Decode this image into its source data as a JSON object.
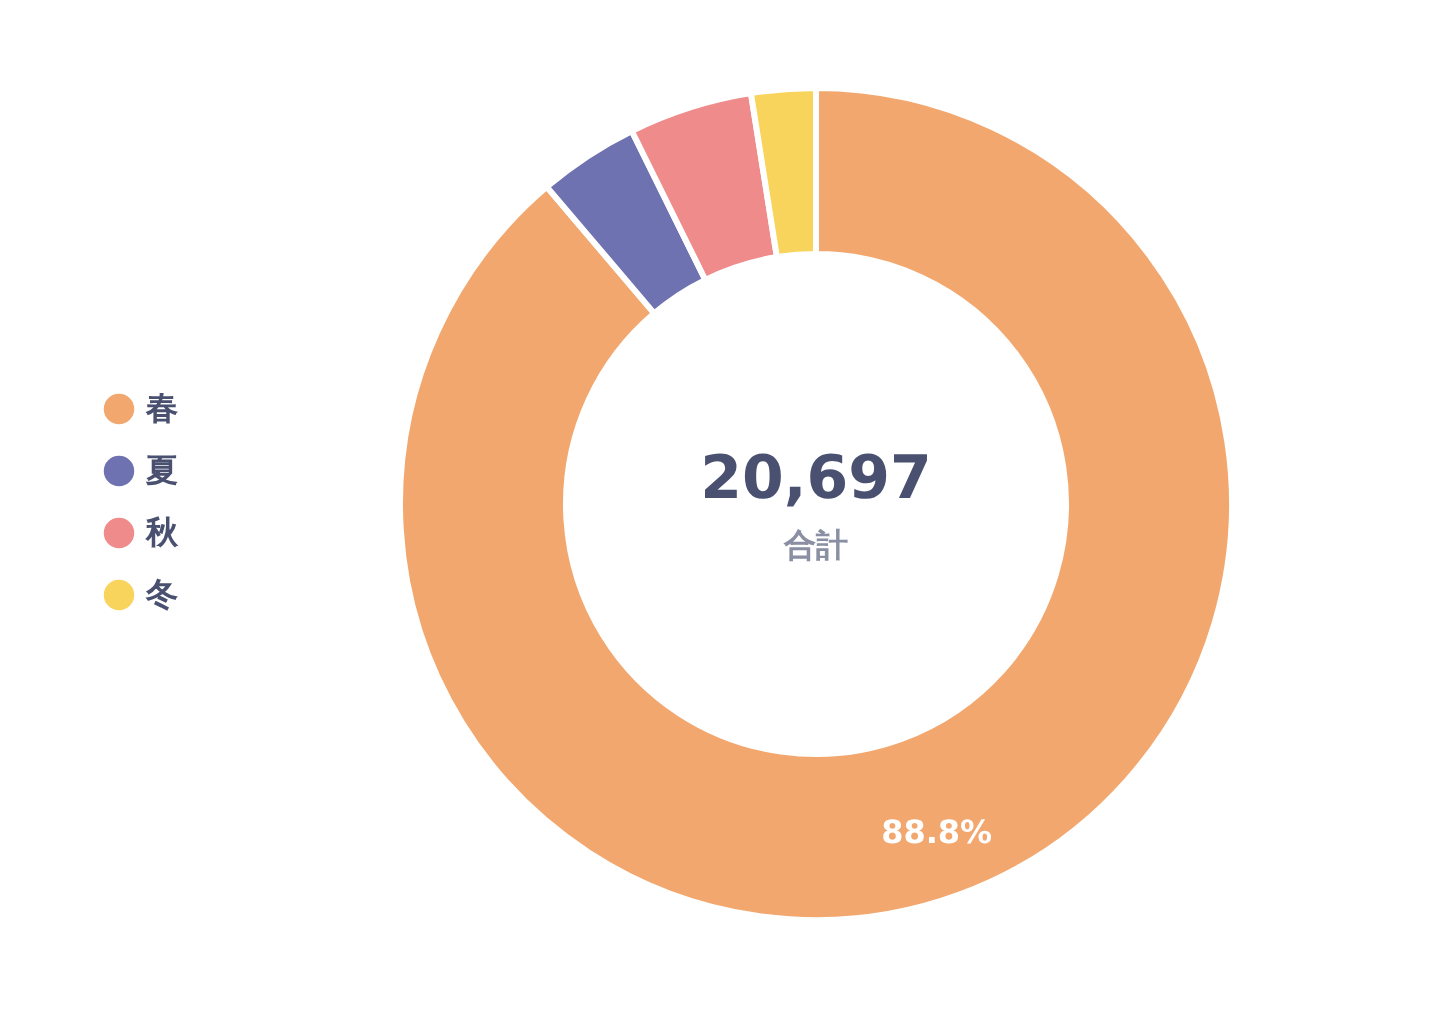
{
  "chart_data": {
    "type": "donut",
    "categories": [
      "春",
      "夏",
      "秋",
      "冬"
    ],
    "values": [
      88.8,
      3.9,
      4.8,
      2.5
    ],
    "colors": [
      "#f2a76e",
      "#6f72b0",
      "#f08b8b",
      "#f8d45c"
    ],
    "value_labels": [
      "88.8%",
      null,
      null,
      null
    ],
    "legend": "left",
    "annotations": [
      "20,697",
      "合計"
    ]
  }
}
